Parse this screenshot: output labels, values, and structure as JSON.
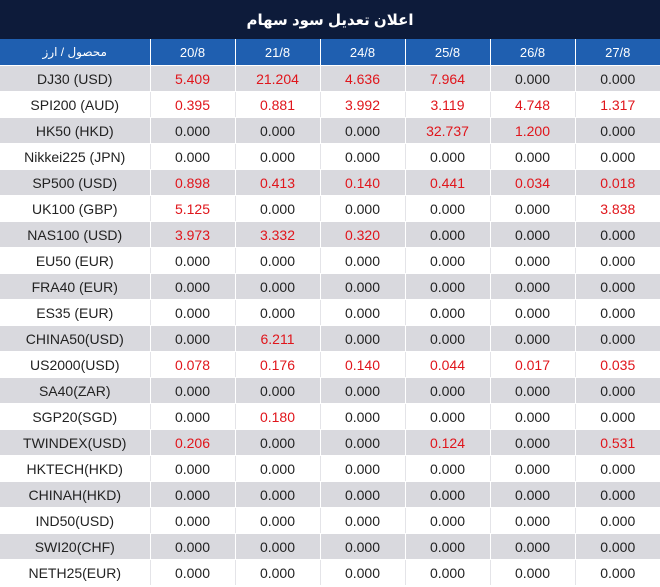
{
  "title": "اعلان تعدیل سود سهام",
  "corner_header": "محصول / ارز",
  "columns": [
    "20/8",
    "21/8",
    "24/8",
    "25/8",
    "26/8",
    "27/8"
  ],
  "rows": [
    {
      "symbol": "DJ30 (USD)",
      "values": [
        "5.409",
        "21.204",
        "4.636",
        "7.964",
        "0.000",
        "0.000"
      ]
    },
    {
      "symbol": "SPI200 (AUD)",
      "values": [
        "0.395",
        "0.881",
        "3.992",
        "3.119",
        "4.748",
        "1.317"
      ]
    },
    {
      "symbol": "HK50 (HKD)",
      "values": [
        "0.000",
        "0.000",
        "0.000",
        "32.737",
        "1.200",
        "0.000"
      ]
    },
    {
      "symbol": "Nikkei225 (JPN)",
      "values": [
        "0.000",
        "0.000",
        "0.000",
        "0.000",
        "0.000",
        "0.000"
      ]
    },
    {
      "symbol": "SP500 (USD)",
      "values": [
        "0.898",
        "0.413",
        "0.140",
        "0.441",
        "0.034",
        "0.018"
      ]
    },
    {
      "symbol": "UK100 (GBP)",
      "values": [
        "5.125",
        "0.000",
        "0.000",
        "0.000",
        "0.000",
        "3.838"
      ]
    },
    {
      "symbol": "NAS100 (USD)",
      "values": [
        "3.973",
        "3.332",
        "0.320",
        "0.000",
        "0.000",
        "0.000"
      ]
    },
    {
      "symbol": "EU50 (EUR)",
      "values": [
        "0.000",
        "0.000",
        "0.000",
        "0.000",
        "0.000",
        "0.000"
      ]
    },
    {
      "symbol": "FRA40 (EUR)",
      "values": [
        "0.000",
        "0.000",
        "0.000",
        "0.000",
        "0.000",
        "0.000"
      ]
    },
    {
      "symbol": "ES35 (EUR)",
      "values": [
        "0.000",
        "0.000",
        "0.000",
        "0.000",
        "0.000",
        "0.000"
      ]
    },
    {
      "symbol": "CHINA50(USD)",
      "values": [
        "0.000",
        "6.211",
        "0.000",
        "0.000",
        "0.000",
        "0.000"
      ]
    },
    {
      "symbol": "US2000(USD)",
      "values": [
        "0.078",
        "0.176",
        "0.140",
        "0.044",
        "0.017",
        "0.035"
      ]
    },
    {
      "symbol": "SA40(ZAR)",
      "values": [
        "0.000",
        "0.000",
        "0.000",
        "0.000",
        "0.000",
        "0.000"
      ]
    },
    {
      "symbol": "SGP20(SGD)",
      "values": [
        "0.000",
        "0.180",
        "0.000",
        "0.000",
        "0.000",
        "0.000"
      ]
    },
    {
      "symbol": "TWINDEX(USD)",
      "values": [
        "0.206",
        "0.000",
        "0.000",
        "0.124",
        "0.000",
        "0.531"
      ]
    },
    {
      "symbol": "HKTECH(HKD)",
      "values": [
        "0.000",
        "0.000",
        "0.000",
        "0.000",
        "0.000",
        "0.000"
      ]
    },
    {
      "symbol": "CHINAH(HKD)",
      "values": [
        "0.000",
        "0.000",
        "0.000",
        "0.000",
        "0.000",
        "0.000"
      ]
    },
    {
      "symbol": "IND50(USD)",
      "values": [
        "0.000",
        "0.000",
        "0.000",
        "0.000",
        "0.000",
        "0.000"
      ]
    },
    {
      "symbol": "SWI20(CHF)",
      "values": [
        "0.000",
        "0.000",
        "0.000",
        "0.000",
        "0.000",
        "0.000"
      ]
    },
    {
      "symbol": "NETH25(EUR)",
      "values": [
        "0.000",
        "0.000",
        "0.000",
        "0.000",
        "0.000",
        "0.000"
      ]
    }
  ],
  "colors": {
    "title_bg": "#0d1b3a",
    "header_bg": "#1f5fb0",
    "row_alt_bg": "#d9d9de",
    "positive_value": "#e0151b",
    "zero_value": "#222222"
  }
}
